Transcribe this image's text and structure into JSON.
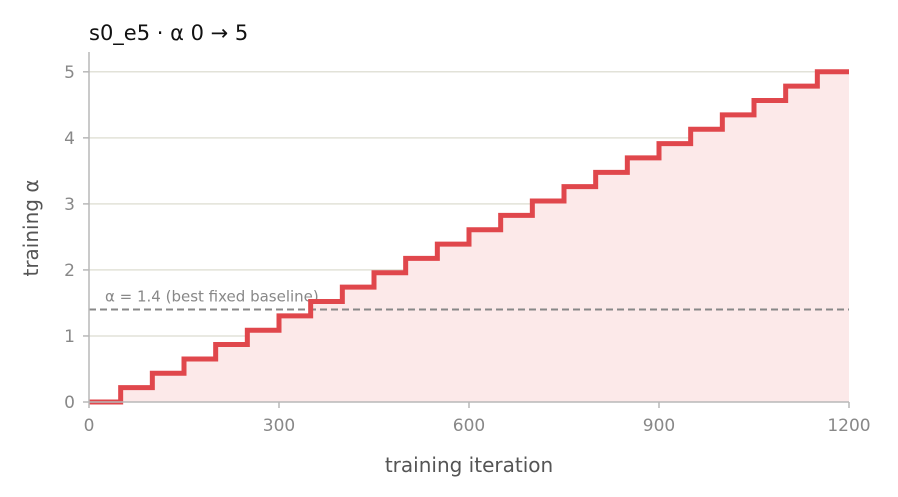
{
  "chart_data": {
    "type": "line",
    "title": "s0_e5   ·   α 0 → 5",
    "xlabel": "training iteration",
    "ylabel": "training α",
    "xlim": [
      0,
      1200
    ],
    "ylim": [
      0,
      5.3
    ],
    "xticks": [
      0,
      300,
      600,
      900,
      1200
    ],
    "xtick_labels": [
      "0",
      "300",
      "600",
      "900",
      "1200"
    ],
    "yticks": [
      0,
      1,
      2,
      3,
      4,
      5
    ],
    "ytick_labels": [
      "0",
      "1",
      "2",
      "3",
      "4",
      "5"
    ],
    "grid": "horizontal",
    "step": "post",
    "fill_under": true,
    "series": [
      {
        "color": "#e0474c",
        "x": [
          0,
          50,
          100,
          150,
          200,
          250,
          300,
          350,
          400,
          450,
          500,
          550,
          600,
          650,
          700,
          750,
          800,
          850,
          900,
          950,
          1000,
          1050,
          1100,
          1150,
          1200
        ],
        "y": [
          0,
          0.217,
          0.435,
          0.652,
          0.87,
          1.087,
          1.304,
          1.522,
          1.739,
          1.957,
          2.174,
          2.391,
          2.609,
          2.826,
          3.043,
          3.261,
          3.478,
          3.696,
          3.913,
          4.13,
          4.348,
          4.565,
          4.783,
          5.0,
          5.0
        ]
      }
    ],
    "reference_line": {
      "y": 1.4,
      "label": "α = 1.4 (best fixed baseline)",
      "style": "dashed",
      "color": "#888888"
    },
    "colors": {
      "line": "#e0474c",
      "fill": "#fce9e9",
      "grid": "#e2e2d8",
      "axis": "#b8b8b8"
    }
  }
}
